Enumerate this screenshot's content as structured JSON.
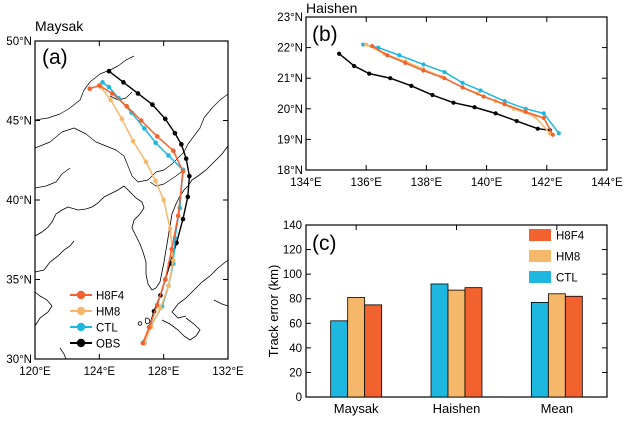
{
  "colors": {
    "H8F4": "#f2622e",
    "HM8": "#f5b86a",
    "CTL": "#1eb7e0",
    "OBS": "#000000"
  },
  "chart_data": [
    {
      "type": "scatter",
      "panel": "(a)",
      "title": "Maysak",
      "xlim": [
        120,
        132
      ],
      "ylim": [
        30,
        50
      ],
      "xticks": [
        "120°E",
        "124°E",
        "128°E",
        "132°E"
      ],
      "yticks": [
        "30°N",
        "35°N",
        "40°N",
        "45°N",
        "50°N"
      ],
      "series": [
        {
          "name": "OBS",
          "x": [
            126.8,
            127.1,
            127.4,
            127.8,
            128.1,
            128.4,
            128.8,
            129.2,
            129.5,
            129.6,
            129.4,
            129.1,
            128.7,
            128.1,
            127.3,
            126.4,
            125.5,
            124.6
          ],
          "y": [
            31.0,
            32.0,
            33.0,
            34.0,
            35.0,
            36.0,
            37.3,
            38.8,
            40.2,
            41.5,
            42.6,
            43.5,
            44.2,
            45.1,
            46.0,
            46.7,
            47.4,
            48.1
          ]
        },
        {
          "name": "CTL",
          "x": [
            126.8,
            127.2,
            127.9,
            128.3,
            128.6,
            128.7,
            129.0,
            129.2,
            128.3,
            127.5,
            126.8,
            126.0,
            125.2,
            124.6,
            124.2
          ],
          "y": [
            31.1,
            32.1,
            33.3,
            34.6,
            36.0,
            37.6,
            39.5,
            41.9,
            42.8,
            43.6,
            44.5,
            45.5,
            46.4,
            47.1,
            47.4
          ]
        },
        {
          "name": "HM8",
          "x": [
            126.8,
            127.2,
            127.8,
            128.3,
            128.6,
            128.4,
            128.0,
            127.5,
            126.9,
            126.1,
            125.4,
            124.7,
            124.1
          ],
          "y": [
            31.0,
            32.0,
            33.2,
            34.6,
            36.2,
            38.2,
            40.0,
            41.2,
            42.4,
            43.7,
            45.1,
            46.3,
            47.1
          ]
        },
        {
          "name": "H8F4",
          "x": [
            126.7,
            127.1,
            127.6,
            128.1,
            128.5,
            128.9,
            129.2,
            128.6,
            127.6,
            126.6,
            125.7,
            124.8,
            124.0,
            123.4
          ],
          "y": [
            31.0,
            32.0,
            33.4,
            35.0,
            36.9,
            39.0,
            41.8,
            43.1,
            44.0,
            45.0,
            45.9,
            46.7,
            47.2,
            47.0
          ]
        }
      ],
      "legend": [
        "H8F4",
        "HM8",
        "CTL",
        "OBS"
      ],
      "legend_position": "bottom-left"
    },
    {
      "type": "line",
      "panel": "(b)",
      "title": "Haishen",
      "xlim": [
        134,
        144
      ],
      "ylim": [
        18,
        23
      ],
      "xticks": [
        "134°E",
        "136°E",
        "138°E",
        "140°E",
        "142°E",
        "144°E"
      ],
      "yticks": [
        "18°N",
        "19°N",
        "20°N",
        "21°N",
        "22°N",
        "23°N"
      ],
      "series": [
        {
          "name": "OBS",
          "x": [
            135.1,
            135.6,
            136.1,
            136.8,
            137.5,
            138.2,
            138.9,
            139.6,
            140.3,
            141.0,
            141.7,
            142.1
          ],
          "y": [
            21.8,
            21.4,
            21.15,
            21.0,
            20.75,
            20.45,
            20.2,
            20.05,
            19.85,
            19.6,
            19.35,
            19.3
          ]
        },
        {
          "name": "CTL",
          "x": [
            135.9,
            136.4,
            137.1,
            137.9,
            138.6,
            139.2,
            139.8,
            140.6,
            141.3,
            141.9,
            142.4
          ],
          "y": [
            22.1,
            22.0,
            21.75,
            21.45,
            21.2,
            20.85,
            20.6,
            20.25,
            20.0,
            19.85,
            19.2
          ]
        },
        {
          "name": "HM8",
          "x": [
            136.0,
            136.6,
            137.3,
            137.9,
            138.5,
            139.2,
            139.7,
            140.3,
            140.9,
            141.6,
            142.1
          ],
          "y": [
            22.1,
            21.8,
            21.55,
            21.3,
            21.05,
            20.7,
            20.5,
            20.25,
            20.0,
            19.75,
            19.2
          ]
        },
        {
          "name": "H8F4",
          "x": [
            136.2,
            136.7,
            137.3,
            137.9,
            138.6,
            139.2,
            139.9,
            140.6,
            141.3,
            141.9,
            142.2
          ],
          "y": [
            22.05,
            21.75,
            21.5,
            21.25,
            21.0,
            20.7,
            20.4,
            20.15,
            19.9,
            19.7,
            19.15
          ]
        }
      ]
    },
    {
      "type": "bar",
      "panel": "(c)",
      "categories": [
        "Maysak",
        "Haishen",
        "Mean"
      ],
      "ylabel": "Track error (km)",
      "ylim": [
        0,
        140
      ],
      "yticks": [
        "0",
        "20",
        "40",
        "60",
        "80",
        "100",
        "120",
        "140"
      ],
      "series": [
        {
          "name": "CTL",
          "values": [
            62,
            92,
            77
          ]
        },
        {
          "name": "HM8",
          "values": [
            81,
            87,
            84
          ]
        },
        {
          "name": "H8F4",
          "values": [
            75,
            89,
            82
          ]
        }
      ],
      "legend": [
        "H8F4",
        "HM8",
        "CTL"
      ],
      "legend_position": "top-right"
    }
  ]
}
